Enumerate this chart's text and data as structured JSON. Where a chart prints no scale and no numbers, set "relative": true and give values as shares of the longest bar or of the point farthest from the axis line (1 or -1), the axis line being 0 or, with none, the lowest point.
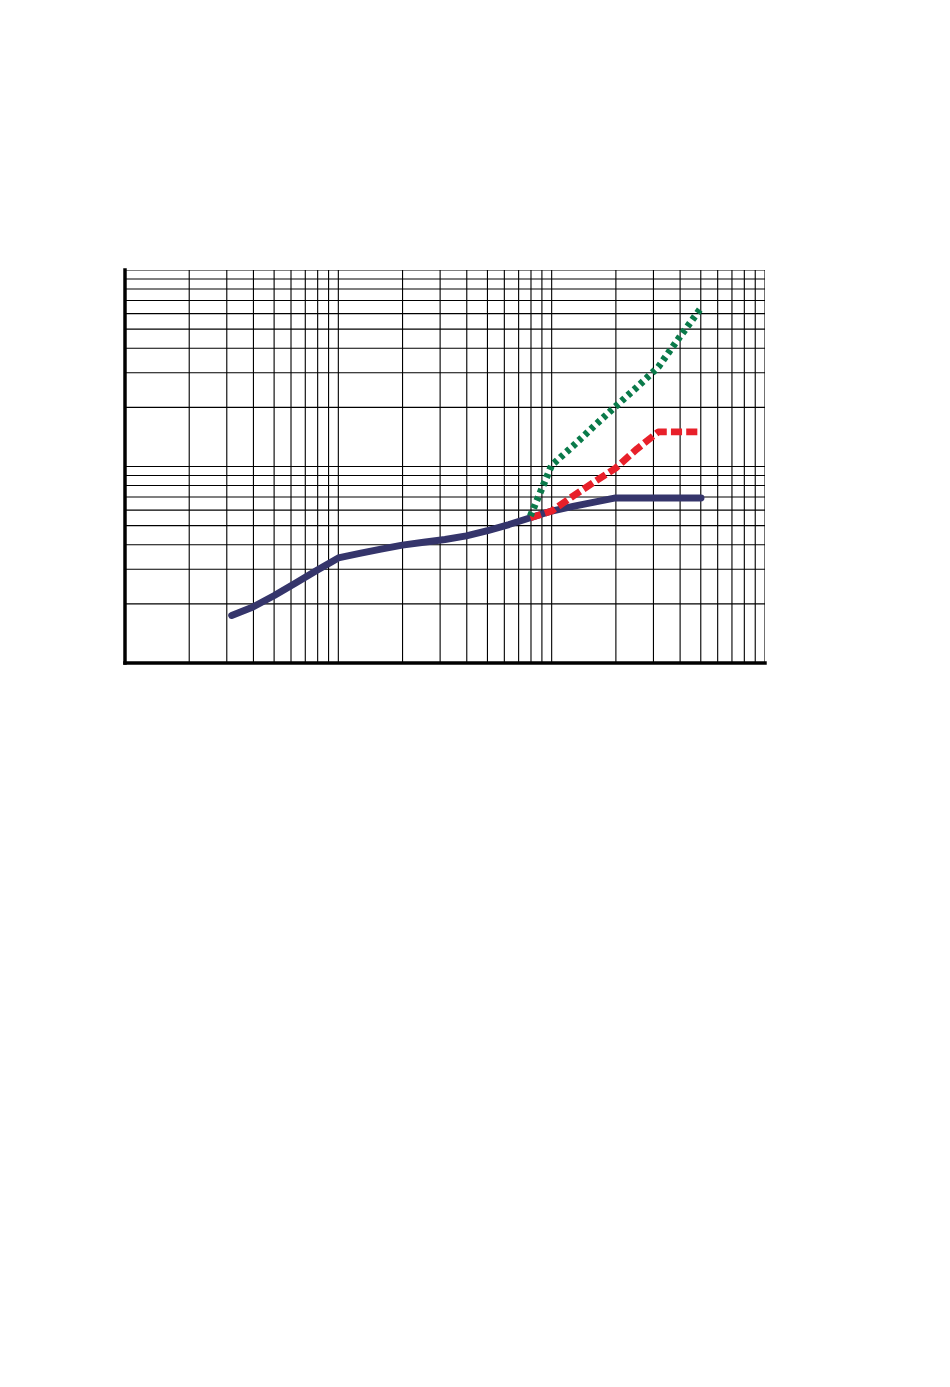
{
  "chart_data": {
    "type": "line",
    "relative": true,
    "grid": true,
    "legend": false,
    "categories": [
      null,
      null,
      null,
      null,
      null,
      null,
      null,
      null,
      null,
      null,
      null,
      null,
      null,
      null,
      null,
      null,
      null,
      null,
      null,
      null,
      null,
      null,
      null,
      null,
      null,
      null,
      null,
      null,
      null,
      null,
      null
    ],
    "series": [
      {
        "color": "#35356b",
        "line_style": "solid",
        "values": [
          null,
          null,
          null,
          null,
          null,
          0.134,
          0.158,
          0.19,
          0.225,
          0.261,
          0.296,
          0.309,
          0.321,
          0.332,
          0.34,
          0.348,
          0.358,
          0.373,
          0.39,
          0.409,
          0.428,
          0.441,
          0.453,
          0.465,
          0.465,
          0.465,
          0.465,
          0.465,
          null,
          null,
          null
        ]
      },
      {
        "color": "#e8202a",
        "line_style": "dashed",
        "values": [
          null,
          null,
          null,
          null,
          null,
          null,
          null,
          null,
          null,
          null,
          null,
          null,
          null,
          null,
          null,
          null,
          null,
          null,
          null,
          0.409,
          0.428,
          0.47,
          0.51,
          0.549,
          0.603,
          0.651,
          0.651,
          0.651,
          null,
          null,
          null
        ]
      },
      {
        "color": "#0a7a4a",
        "line_style": "dotted",
        "values": [
          null,
          null,
          null,
          null,
          null,
          null,
          null,
          null,
          null,
          null,
          null,
          null,
          null,
          null,
          null,
          null,
          null,
          null,
          null,
          0.414,
          0.557,
          0.611,
          0.668,
          0.723,
          0.777,
          0.834,
          0.918,
          1,
          null,
          null,
          null
        ]
      }
    ]
  }
}
